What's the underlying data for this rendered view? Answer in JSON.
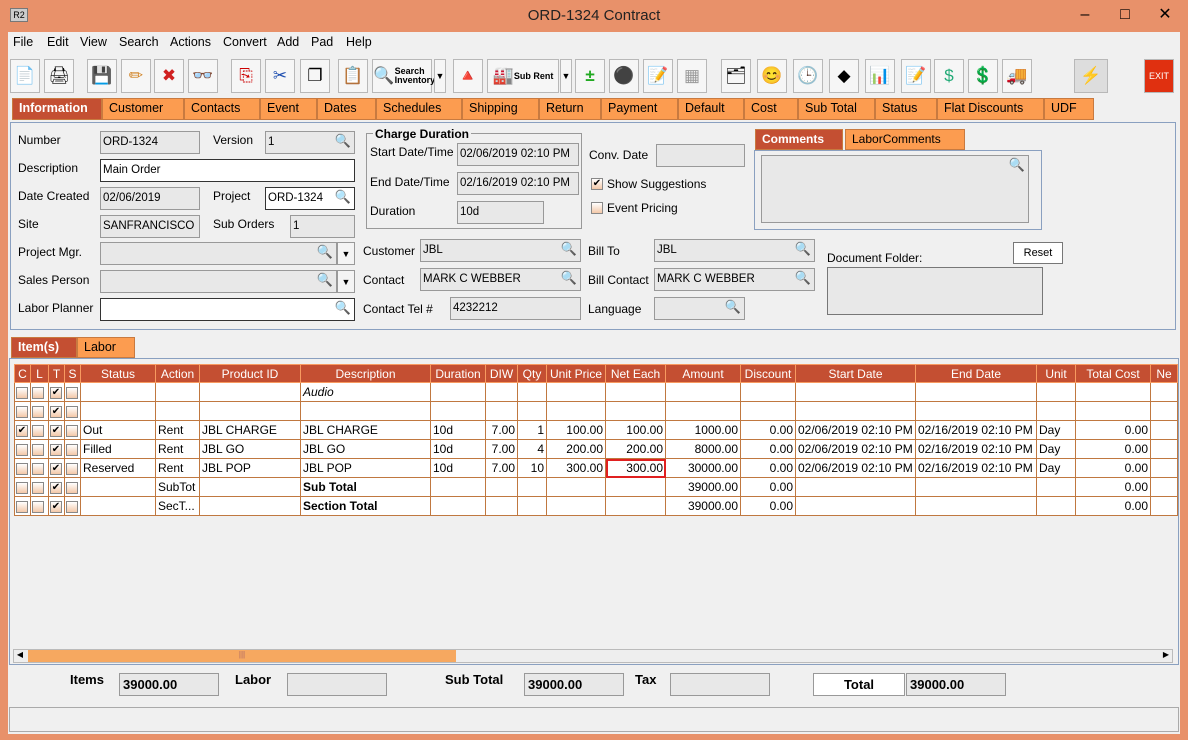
{
  "window": {
    "title": "ORD-1324 Contract",
    "app_icon": "R2"
  },
  "menu": [
    "File",
    "Edit",
    "View",
    "Search",
    "Actions",
    "Convert",
    "Add",
    "Pad",
    "Help"
  ],
  "toolbar": {
    "search_inventory": "Search Inventory",
    "sub_rent": "Sub Rent",
    "exit": "EXIT"
  },
  "tabs": [
    "Information",
    "Customer",
    "Contacts",
    "Event",
    "Dates",
    "Schedules",
    "Shipping",
    "Return",
    "Payment",
    "Default",
    "Cost",
    "Sub Total",
    "Status",
    "Flat Discounts",
    "UDF"
  ],
  "info": {
    "number_label": "Number",
    "number": "ORD-1324",
    "version_label": "Version",
    "version": "1",
    "description_label": "Description",
    "description": "Main Order",
    "date_created_label": "Date Created",
    "date_created": "02/06/2019",
    "project_label": "Project",
    "project": "ORD-1324",
    "site_label": "Site",
    "site": "SANFRANCISCO",
    "sub_orders_label": "Sub Orders",
    "sub_orders": "1",
    "project_mgr_label": "Project Mgr.",
    "project_mgr": "",
    "sales_person_label": "Sales Person",
    "sales_person": "",
    "labor_planner_label": "Labor Planner",
    "labor_planner": "",
    "charge_duration_title": "Charge Duration",
    "start_label": "Start Date/Time",
    "start": "02/06/2019 02:10 PM",
    "end_label": "End Date/Time",
    "end": "02/16/2019 02:10 PM",
    "duration_label": "Duration",
    "duration": "10d",
    "conv_date_label": "Conv. Date",
    "conv_date": "",
    "show_suggestions": "Show Suggestions",
    "show_suggestions_checked": true,
    "event_pricing": "Event Pricing",
    "event_pricing_checked": false,
    "customer_label": "Customer",
    "customer": "JBL",
    "contact_label": "Contact",
    "contact": "MARK C WEBBER",
    "contact_tel_label": "Contact Tel #",
    "contact_tel": "4232212",
    "bill_to_label": "Bill To",
    "bill_to": "JBL",
    "bill_contact_label": "Bill Contact",
    "bill_contact": "MARK C WEBBER",
    "language_label": "Language",
    "language": "",
    "comment_tabs": [
      "Comments",
      "LaborComments"
    ],
    "document_folder_label": "Document Folder:",
    "reset": "Reset"
  },
  "item_tabs": [
    "Item(s)",
    "Labor"
  ],
  "grid": {
    "columns": [
      "C",
      "L",
      "T",
      "S",
      "Status",
      "Action",
      "Product ID",
      "Description",
      "Duration",
      "DIW",
      "Qty",
      "Unit Price",
      "Net Each",
      "Amount",
      "Discount",
      "Start Date",
      "End Date",
      "Unit",
      "Total Cost",
      "Ne"
    ],
    "rows": [
      {
        "c": false,
        "l": false,
        "t": true,
        "s": false,
        "status": "",
        "action": "",
        "product": "",
        "description": "Audio",
        "duration": "",
        "diw": "",
        "qty": "",
        "unit_price": "",
        "net_each": "",
        "amount": "",
        "discount": "",
        "start": "",
        "end": "",
        "unit": "",
        "total_cost": ""
      },
      {
        "c": false,
        "l": false,
        "t": true,
        "s": false,
        "status": "",
        "action": "",
        "product": "",
        "description": "",
        "duration": "",
        "diw": "",
        "qty": "",
        "unit_price": "",
        "net_each": "",
        "amount": "",
        "discount": "",
        "start": "",
        "end": "",
        "unit": "",
        "total_cost": ""
      },
      {
        "c": true,
        "l": false,
        "t": true,
        "s": false,
        "status": "Out",
        "action": "Rent",
        "product": "JBL CHARGE",
        "description": "JBL CHARGE",
        "duration": "10d",
        "diw": "7.00",
        "qty": "1",
        "unit_price": "100.00",
        "net_each": "100.00",
        "amount": "1000.00",
        "discount": "0.00",
        "start": "02/06/2019 02:10 PM",
        "end": "02/16/2019 02:10 PM",
        "unit": "Day",
        "total_cost": "0.00"
      },
      {
        "c": false,
        "l": false,
        "t": true,
        "s": false,
        "status": "Filled",
        "action": "Rent",
        "product": "JBL GO",
        "description": "JBL GO",
        "duration": "10d",
        "diw": "7.00",
        "qty": "4",
        "unit_price": "200.00",
        "net_each": "200.00",
        "amount": "8000.00",
        "discount": "0.00",
        "start": "02/06/2019 02:10 PM",
        "end": "02/16/2019 02:10 PM",
        "unit": "Day",
        "total_cost": "0.00"
      },
      {
        "c": false,
        "l": false,
        "t": true,
        "s": false,
        "status": "Reserved",
        "action": "Rent",
        "product": "JBL POP",
        "description": "JBL POP",
        "duration": "10d",
        "diw": "7.00",
        "qty": "10",
        "unit_price": "300.00",
        "net_each": "300.00",
        "amount": "30000.00",
        "discount": "0.00",
        "start": "02/06/2019 02:10 PM",
        "end": "02/16/2019 02:10 PM",
        "unit": "Day",
        "total_cost": "0.00"
      },
      {
        "c": false,
        "l": false,
        "t": true,
        "s": false,
        "status": "",
        "action": "SubTot",
        "product": "",
        "description": "Sub Total",
        "duration": "",
        "diw": "",
        "qty": "",
        "unit_price": "",
        "net_each": "",
        "amount": "39000.00",
        "discount": "0.00",
        "start": "",
        "end": "",
        "unit": "",
        "total_cost": "0.00"
      },
      {
        "c": false,
        "l": false,
        "t": true,
        "s": false,
        "status": "",
        "action": "SecT...",
        "product": "",
        "description": "Section Total",
        "duration": "",
        "diw": "",
        "qty": "",
        "unit_price": "",
        "net_each": "",
        "amount": "39000.00",
        "discount": "0.00",
        "start": "",
        "end": "",
        "unit": "",
        "total_cost": "0.00"
      }
    ]
  },
  "totals": {
    "items_label": "Items",
    "items": "39000.00",
    "labor_label": "Labor",
    "labor": "",
    "sub_total_label": "Sub Total",
    "sub_total": "39000.00",
    "tax_label": "Tax",
    "tax": "",
    "total_label": "Total",
    "total": "39000.00"
  },
  "colors": {
    "title": "#e8916a",
    "tab": "#fc9c50",
    "active": "#c44f32"
  }
}
